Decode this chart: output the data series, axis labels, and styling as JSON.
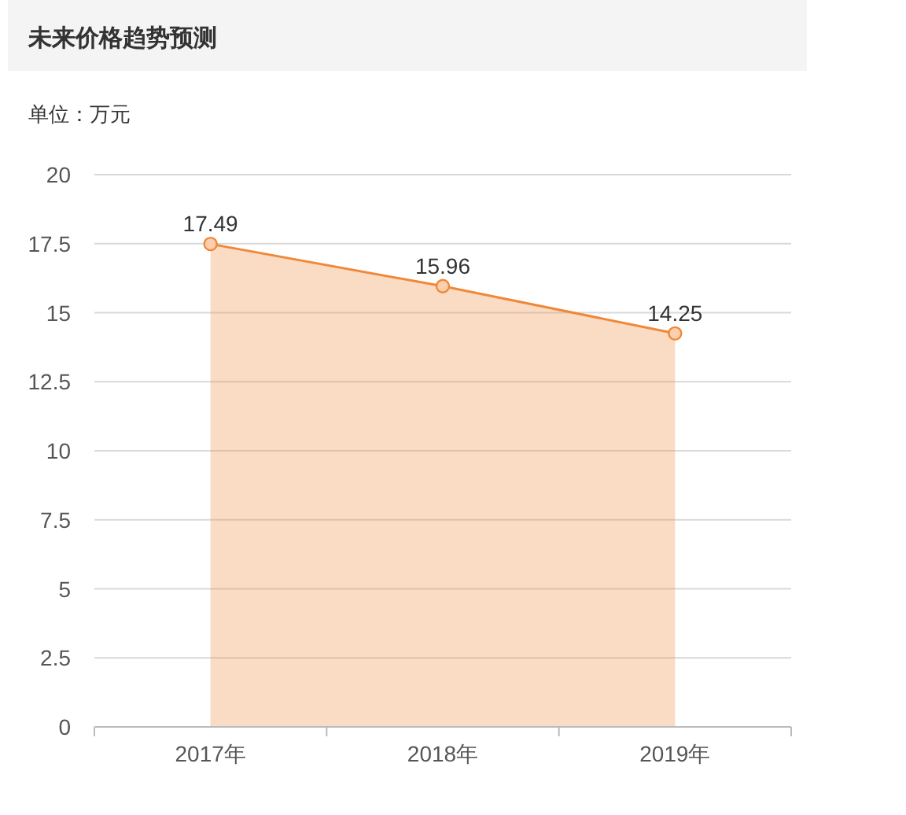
{
  "chart_data": {
    "type": "area",
    "title": "未来价格趋势预测",
    "ylabel": "单位：万元",
    "categories": [
      "2017年",
      "2018年",
      "2019年"
    ],
    "series": [
      {
        "color": "#f0883a",
        "values": [
          17.49,
          15.96,
          14.25
        ]
      }
    ],
    "ylim": [
      0,
      20
    ],
    "yticks": [
      0,
      2.5,
      5,
      7.5,
      10,
      12.5,
      15,
      17.5,
      20
    ],
    "grid": "y",
    "marker": "circle",
    "data_labels": true
  }
}
